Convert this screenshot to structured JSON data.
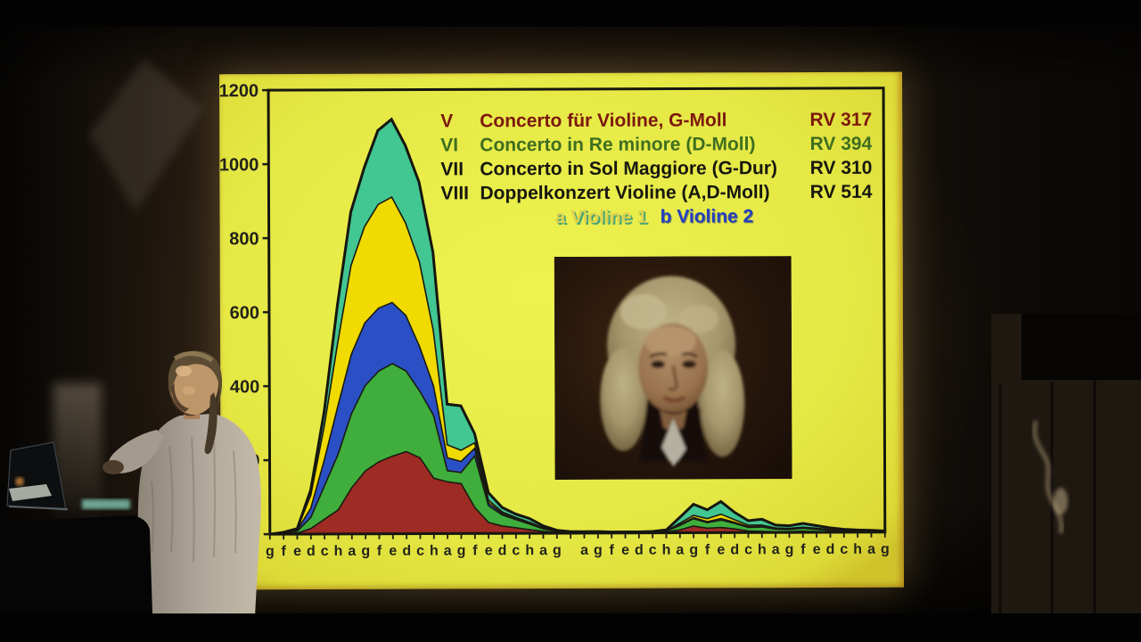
{
  "slide": {
    "legend": [
      {
        "numeral": "V",
        "title": "Concerto für Violine, G-Moll",
        "rv": "RV 317",
        "color": "#7c180e"
      },
      {
        "numeral": "VI",
        "title": "Concerto in Re minore (D-Moll)",
        "rv": "RV 394",
        "color": "#3f6e1f"
      },
      {
        "numeral": "VII",
        "title": "Concerto in Sol Maggiore (G-Dur)",
        "rv": "RV 310",
        "color": "#17170f"
      },
      {
        "numeral": "VIII",
        "title": "Doppelkonzert Violine (A,D-Moll)",
        "rv": "RV 514",
        "color": "#17170f"
      }
    ],
    "sublegend": [
      {
        "label": "a Violine 1",
        "color": "#ded24e"
      },
      {
        "label": "b Violine 2",
        "color": "#2440bd"
      }
    ]
  },
  "chart_data": {
    "type": "area",
    "stacked": true,
    "title": "",
    "xlabel": "",
    "ylabel": "",
    "ylim": [
      0,
      1200
    ],
    "yticks": [
      0,
      200,
      400,
      600,
      800,
      1000,
      1200
    ],
    "grid": false,
    "categories": [
      "g",
      "f",
      "e",
      "d",
      "c",
      "h",
      "a",
      "g",
      "f",
      "e",
      "d",
      "c",
      "h",
      "a",
      "g",
      "f",
      "e",
      "d",
      "c",
      "h",
      "a",
      "g",
      "",
      "a",
      "g",
      "f",
      "e",
      "d",
      "c",
      "h",
      "a",
      "g",
      "f",
      "e",
      "d",
      "c",
      "h",
      "a",
      "g",
      "f",
      "e",
      "d",
      "c",
      "h",
      "a",
      "g"
    ],
    "series": [
      {
        "name": "red",
        "color": "#9e2b24",
        "values": [
          0,
          1,
          3,
          15,
          40,
          65,
          125,
          170,
          195,
          210,
          222,
          205,
          150,
          140,
          135,
          70,
          30,
          20,
          15,
          10,
          5,
          2,
          1,
          1,
          1,
          1,
          1,
          1,
          1,
          2,
          8,
          18,
          12,
          14,
          10,
          4,
          3,
          2,
          2,
          3,
          2,
          1,
          1,
          1,
          0,
          0
        ]
      },
      {
        "name": "green",
        "color": "#3fae3c",
        "values": [
          0,
          2,
          5,
          30,
          90,
          150,
          200,
          230,
          245,
          250,
          218,
          180,
          170,
          30,
          30,
          140,
          45,
          30,
          22,
          15,
          7,
          3,
          1,
          1,
          1,
          1,
          1,
          1,
          1,
          2,
          12,
          20,
          15,
          20,
          15,
          10,
          12,
          7,
          6,
          8,
          6,
          4,
          3,
          2,
          2,
          1
        ]
      },
      {
        "name": "blue",
        "color": "#2b50c5",
        "values": [
          0,
          1,
          3,
          25,
          70,
          130,
          160,
          170,
          170,
          165,
          150,
          120,
          80,
          35,
          30,
          20,
          8,
          4,
          3,
          2,
          1,
          0,
          0,
          0,
          0,
          0,
          0,
          0,
          0,
          0,
          2,
          3,
          3,
          4,
          3,
          2,
          2,
          1,
          1,
          1,
          1,
          1,
          0,
          0,
          0,
          0
        ]
      },
      {
        "name": "yellow",
        "color": "#f0da00",
        "values": [
          0,
          1,
          3,
          35,
          90,
          170,
          240,
          260,
          280,
          285,
          250,
          230,
          150,
          35,
          30,
          15,
          7,
          4,
          3,
          3,
          2,
          1,
          1,
          1,
          1,
          0,
          0,
          0,
          1,
          1,
          4,
          6,
          8,
          12,
          7,
          4,
          3,
          2,
          2,
          2,
          2,
          1,
          1,
          1,
          1,
          1
        ]
      },
      {
        "name": "teal",
        "color": "#42c692",
        "values": [
          0,
          0,
          1,
          15,
          40,
          105,
          145,
          160,
          200,
          210,
          210,
          215,
          210,
          110,
          120,
          25,
          20,
          12,
          9,
          10,
          5,
          2,
          1,
          1,
          1,
          1,
          1,
          1,
          1,
          3,
          16,
          30,
          24,
          34,
          20,
          12,
          16,
          8,
          7,
          10,
          7,
          5,
          3,
          2,
          2,
          1
        ]
      }
    ],
    "outline_color": "#16160f",
    "legend_position": "top-right-inside"
  }
}
